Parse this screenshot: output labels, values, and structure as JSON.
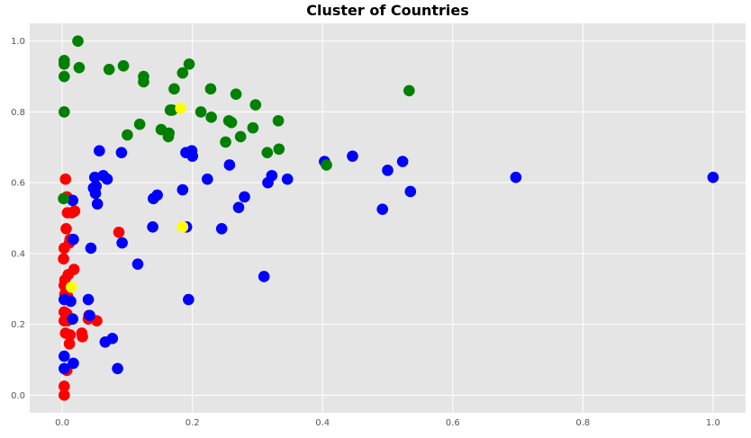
{
  "chart_data": {
    "type": "scatter",
    "title": "Cluster of Countries",
    "xlabel": "",
    "ylabel": "",
    "xlim": [
      -0.05,
      1.05
    ],
    "ylim": [
      -0.05,
      1.05
    ],
    "xticks": [
      0.0,
      0.2,
      0.4,
      0.6,
      0.8,
      1.0
    ],
    "yticks": [
      0.0,
      0.2,
      0.4,
      0.6,
      0.8,
      1.0
    ],
    "xtick_labels": [
      "0.0",
      "0.2",
      "0.4",
      "0.6",
      "0.8",
      "1.0"
    ],
    "ytick_labels": [
      "0.0",
      "0.2",
      "0.4",
      "0.6",
      "0.8",
      "1.0"
    ],
    "grid": true,
    "background": "#e5e5e5",
    "grid_color": "#ffffff",
    "series": [
      {
        "color": "#ff0000",
        "points": [
          [
            0.005,
            0.61
          ],
          [
            0.007,
            0.56
          ],
          [
            0.008,
            0.515
          ],
          [
            0.015,
            0.515
          ],
          [
            0.019,
            0.52
          ],
          [
            0.012,
            0.44
          ],
          [
            0.011,
            0.43
          ],
          [
            0.003,
            0.415
          ],
          [
            0.006,
            0.47
          ],
          [
            0.002,
            0.385
          ],
          [
            0.009,
            0.34
          ],
          [
            0.018,
            0.355
          ],
          [
            0.004,
            0.325
          ],
          [
            0.003,
            0.31
          ],
          [
            0.006,
            0.3
          ],
          [
            0.004,
            0.285
          ],
          [
            0.008,
            0.28
          ],
          [
            0.003,
            0.235
          ],
          [
            0.007,
            0.23
          ],
          [
            0.003,
            0.21
          ],
          [
            0.008,
            0.21
          ],
          [
            0.005,
            0.175
          ],
          [
            0.012,
            0.17
          ],
          [
            0.011,
            0.145
          ],
          [
            0.007,
            0.07
          ],
          [
            0.003,
            0.025
          ],
          [
            0.003,
            0.0
          ],
          [
            0.03,
            0.175
          ],
          [
            0.031,
            0.165
          ],
          [
            0.04,
            0.215
          ],
          [
            0.053,
            0.21
          ],
          [
            0.087,
            0.46
          ],
          [
            0.041,
            0.225
          ]
        ]
      },
      {
        "color": "#0000ff",
        "points": [
          [
            0.057,
            0.69
          ],
          [
            0.048,
            0.585
          ],
          [
            0.052,
            0.59
          ],
          [
            0.051,
            0.57
          ],
          [
            0.054,
            0.54
          ],
          [
            0.05,
            0.615
          ],
          [
            0.063,
            0.62
          ],
          [
            0.069,
            0.61
          ],
          [
            0.016,
            0.55
          ],
          [
            0.017,
            0.44
          ],
          [
            0.044,
            0.415
          ],
          [
            0.091,
            0.685
          ],
          [
            0.092,
            0.43
          ],
          [
            0.116,
            0.37
          ],
          [
            0.14,
            0.555
          ],
          [
            0.146,
            0.565
          ],
          [
            0.139,
            0.475
          ],
          [
            0.185,
            0.58
          ],
          [
            0.19,
            0.685
          ],
          [
            0.199,
            0.69
          ],
          [
            0.2,
            0.675
          ],
          [
            0.223,
            0.61
          ],
          [
            0.191,
            0.475
          ],
          [
            0.194,
            0.27
          ],
          [
            0.245,
            0.47
          ],
          [
            0.257,
            0.65
          ],
          [
            0.271,
            0.53
          ],
          [
            0.28,
            0.56
          ],
          [
            0.31,
            0.335
          ],
          [
            0.316,
            0.6
          ],
          [
            0.322,
            0.62
          ],
          [
            0.346,
            0.61
          ],
          [
            0.403,
            0.66
          ],
          [
            0.446,
            0.675
          ],
          [
            0.5,
            0.635
          ],
          [
            0.523,
            0.66
          ],
          [
            0.535,
            0.575
          ],
          [
            0.492,
            0.525
          ],
          [
            0.697,
            0.615
          ],
          [
            1.0,
            0.615
          ],
          [
            0.04,
            0.27
          ],
          [
            0.042,
            0.225
          ],
          [
            0.016,
            0.215
          ],
          [
            0.013,
            0.265
          ],
          [
            0.003,
            0.27
          ],
          [
            0.017,
            0.09
          ],
          [
            0.003,
            0.11
          ],
          [
            0.003,
            0.075
          ],
          [
            0.066,
            0.15
          ],
          [
            0.077,
            0.16
          ],
          [
            0.085,
            0.075
          ]
        ]
      },
      {
        "color": "#008000",
        "points": [
          [
            0.024,
            1.0
          ],
          [
            0.003,
            0.945
          ],
          [
            0.003,
            0.935
          ],
          [
            0.003,
            0.9
          ],
          [
            0.026,
            0.925
          ],
          [
            0.072,
            0.92
          ],
          [
            0.094,
            0.93
          ],
          [
            0.125,
            0.9
          ],
          [
            0.125,
            0.885
          ],
          [
            0.185,
            0.91
          ],
          [
            0.195,
            0.935
          ],
          [
            0.172,
            0.865
          ],
          [
            0.228,
            0.865
          ],
          [
            0.267,
            0.85
          ],
          [
            0.297,
            0.82
          ],
          [
            0.166,
            0.805
          ],
          [
            0.169,
            0.805
          ],
          [
            0.213,
            0.8
          ],
          [
            0.229,
            0.785
          ],
          [
            0.256,
            0.775
          ],
          [
            0.26,
            0.77
          ],
          [
            0.293,
            0.755
          ],
          [
            0.332,
            0.775
          ],
          [
            0.119,
            0.765
          ],
          [
            0.1,
            0.735
          ],
          [
            0.152,
            0.75
          ],
          [
            0.164,
            0.74
          ],
          [
            0.163,
            0.73
          ],
          [
            0.274,
            0.73
          ],
          [
            0.251,
            0.715
          ],
          [
            0.315,
            0.685
          ],
          [
            0.333,
            0.695
          ],
          [
            0.533,
            0.86
          ],
          [
            0.406,
            0.65
          ],
          [
            0.003,
            0.8
          ],
          [
            0.002,
            0.555
          ]
        ]
      },
      {
        "color": "#ffff00",
        "points": [
          [
            0.182,
            0.81
          ],
          [
            0.185,
            0.475
          ],
          [
            0.014,
            0.305
          ]
        ]
      }
    ]
  }
}
